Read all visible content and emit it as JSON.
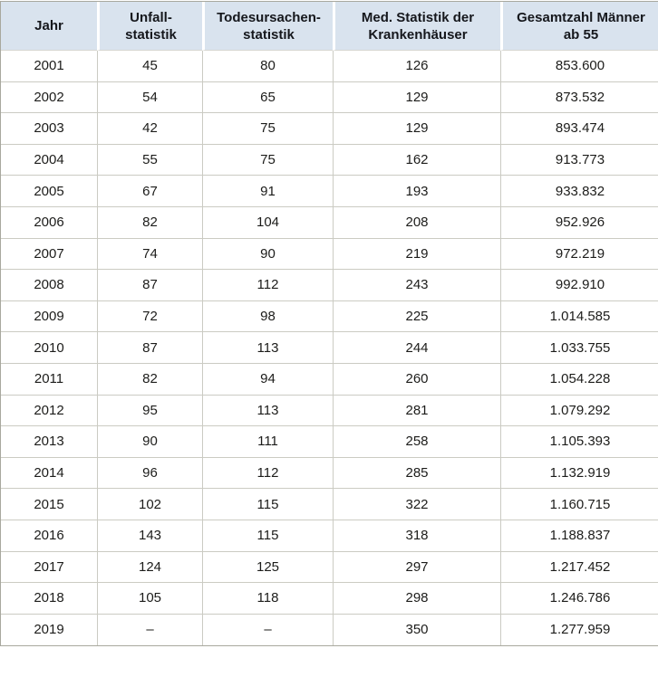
{
  "chart_data": {
    "type": "table",
    "columns": [
      {
        "key": "jahr",
        "label": "Jahr"
      },
      {
        "key": "unfallstatistik",
        "label": "Unfall-\nstatistik"
      },
      {
        "key": "todesursachenstatistik",
        "label": "Todesursachen-\nstatistik"
      },
      {
        "key": "med-statistik-krankenhaeuser",
        "label": "Med. Statistik der\nKrankenhäuser"
      },
      {
        "key": "gesamtzahl-maenner-ab-55",
        "label": "Gesamtzahl Männer\nab 55"
      }
    ],
    "rows": [
      [
        "2001",
        "45",
        "80",
        "126",
        "853.600"
      ],
      [
        "2002",
        "54",
        "65",
        "129",
        "873.532"
      ],
      [
        "2003",
        "42",
        "75",
        "129",
        "893.474"
      ],
      [
        "2004",
        "55",
        "75",
        "162",
        "913.773"
      ],
      [
        "2005",
        "67",
        "91",
        "193",
        "933.832"
      ],
      [
        "2006",
        "82",
        "104",
        "208",
        "952.926"
      ],
      [
        "2007",
        "74",
        "90",
        "219",
        "972.219"
      ],
      [
        "2008",
        "87",
        "112",
        "243",
        "992.910"
      ],
      [
        "2009",
        "72",
        "98",
        "225",
        "1.014.585"
      ],
      [
        "2010",
        "87",
        "113",
        "244",
        "1.033.755"
      ],
      [
        "2011",
        "82",
        "94",
        "260",
        "1.054.228"
      ],
      [
        "2012",
        "95",
        "113",
        "281",
        "1.079.292"
      ],
      [
        "2013",
        "90",
        "111",
        "258",
        "1.105.393"
      ],
      [
        "2014",
        "96",
        "112",
        "285",
        "1.132.919"
      ],
      [
        "2015",
        "102",
        "115",
        "322",
        "1.160.715"
      ],
      [
        "2016",
        "143",
        "115",
        "318",
        "1.188.837"
      ],
      [
        "2017",
        "124",
        "125",
        "297",
        "1.217.452"
      ],
      [
        "2018",
        "105",
        "118",
        "298",
        "1.246.786"
      ],
      [
        "2019",
        "–",
        "–",
        "350",
        "1.277.959"
      ]
    ]
  },
  "colors": {
    "header_background": "#d9e3ee",
    "header_text": "#15171c",
    "body_text": "#1c1c1a",
    "grid_line": "#cbcbc3",
    "outer_border": "#a8a89e",
    "row_background": "#ffffff"
  }
}
